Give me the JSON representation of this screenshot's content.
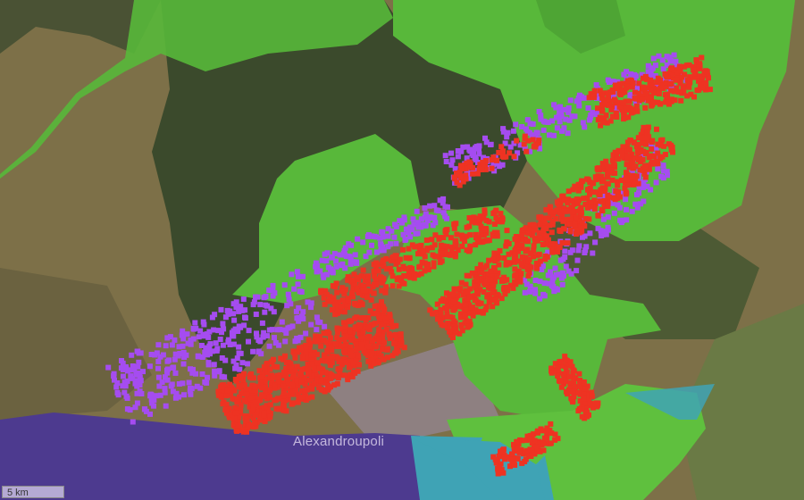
{
  "map": {
    "place_label": "Alexandroupoli",
    "scale_label": "5 km",
    "colors": {
      "land": "#7d7048",
      "forest": "#3b4a2c",
      "protected_area": "#58b83a",
      "protected_area_light": "#6fcf45",
      "sea": "#4d3a8f",
      "coastal_water": "#3fa3b5",
      "fire_detection_recent": "#ee3322",
      "fire_detection_older": "#a54cf0",
      "urban": "#a58fc8"
    },
    "layers": [
      "satellite-imagery",
      "protected-areas",
      "sea",
      "fire-detections"
    ]
  }
}
